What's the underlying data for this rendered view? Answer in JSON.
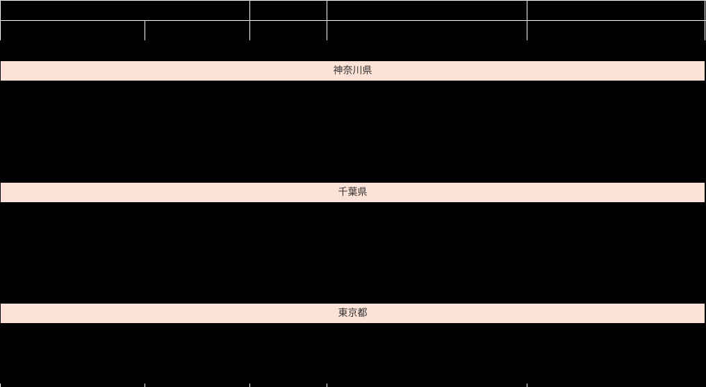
{
  "sections": [
    {
      "label": "神奈川県"
    },
    {
      "label": "千葉県"
    },
    {
      "label": "東京都"
    }
  ],
  "colors": {
    "background": "#000000",
    "section_band": "#fde3d7",
    "grid": "#ffffff"
  }
}
